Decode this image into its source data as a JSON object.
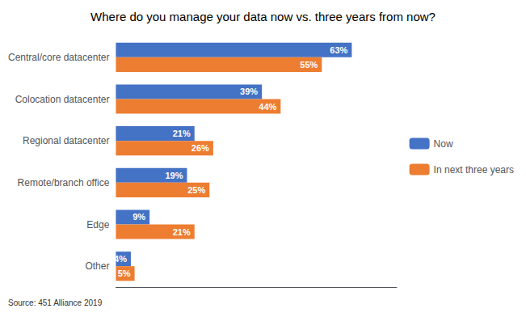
{
  "chart_data": {
    "type": "bar",
    "orientation": "horizontal",
    "title": "Where do you manage your data now vs. three years from now?",
    "categories": [
      "Central/core datacenter",
      "Colocation datacenter",
      "Regional datacenter",
      "Remote/branch office",
      "Edge",
      "Other"
    ],
    "series": [
      {
        "name": "Now",
        "color": "#4472C4",
        "values": [
          63,
          39,
          21,
          19,
          9,
          4
        ],
        "value_labels": [
          "63%",
          "39%",
          "21%",
          "19%",
          "9%",
          "4%"
        ]
      },
      {
        "name": "In next three years",
        "color": "#ED7D31",
        "values": [
          55,
          44,
          26,
          25,
          21,
          5
        ],
        "value_labels": [
          "55%",
          "44%",
          "26%",
          "25%",
          "21%",
          "5%"
        ]
      }
    ],
    "xlim": [
      0,
      75
    ],
    "grid": false,
    "legend": "right",
    "data_labels": true,
    "tick_labels": "y",
    "annotations": [
      "Source: 451 Alliance 2019"
    ]
  }
}
